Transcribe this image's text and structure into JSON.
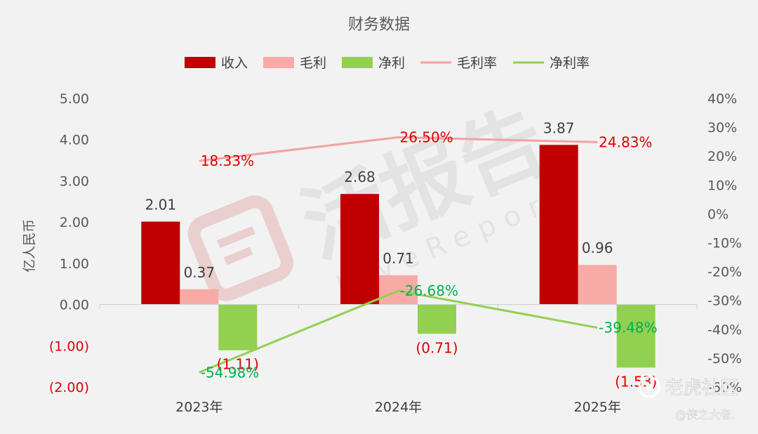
{
  "chart_data": {
    "type": "bar",
    "title": "财务数据",
    "categories": [
      "2023年",
      "2024年",
      "2025年"
    ],
    "ylabel": "亿人民币",
    "ylim": [
      -2,
      5
    ],
    "y2lim": [
      -0.6,
      0.4
    ],
    "yticks": [
      "(2.00)",
      "(1.00)",
      "0.00",
      "1.00",
      "2.00",
      "3.00",
      "4.00",
      "5.00"
    ],
    "y2ticks": [
      "-60%",
      "-50%",
      "-40%",
      "-30%",
      "-20%",
      "-10%",
      "0%",
      "10%",
      "20%",
      "30%",
      "40%"
    ],
    "legend_position": "top",
    "grid": false,
    "series": [
      {
        "name": "收入",
        "kind": "bar",
        "color": "#c00000",
        "values": [
          2.01,
          2.68,
          3.87
        ],
        "labels": [
          "2.01",
          "2.68",
          "3.87"
        ],
        "label_color": "#404040"
      },
      {
        "name": "毛利",
        "kind": "bar",
        "color": "#f8aba6",
        "values": [
          0.37,
          0.71,
          0.96
        ],
        "labels": [
          "0.37",
          "0.71",
          "0.96"
        ],
        "label_color": "#404040"
      },
      {
        "name": "净利",
        "kind": "bar",
        "color": "#92d050",
        "values": [
          -1.11,
          -0.71,
          -1.53
        ],
        "labels": [
          "(1.11)",
          "(0.71)",
          "(1.53)"
        ],
        "label_color": "#e00000"
      },
      {
        "name": "毛利率",
        "kind": "line",
        "axis": "right",
        "color": "#f4a0a0",
        "values": [
          0.1833,
          0.265,
          0.2483
        ],
        "labels": [
          "18.33%",
          "26.50%",
          "24.83%"
        ],
        "label_color": "#e00000"
      },
      {
        "name": "净利率",
        "kind": "line",
        "axis": "right",
        "color": "#92d050",
        "values": [
          -0.5498,
          -0.2668,
          -0.3948
        ],
        "labels": [
          "-54.98%",
          "-26.68%",
          "-39.48%"
        ],
        "label_color": "#00b050"
      }
    ]
  },
  "watermark": {
    "cn": "活报告",
    "en": "LiveReport",
    "credit_brand": "老虎社区",
    "credit_user": "@侠之大者."
  }
}
